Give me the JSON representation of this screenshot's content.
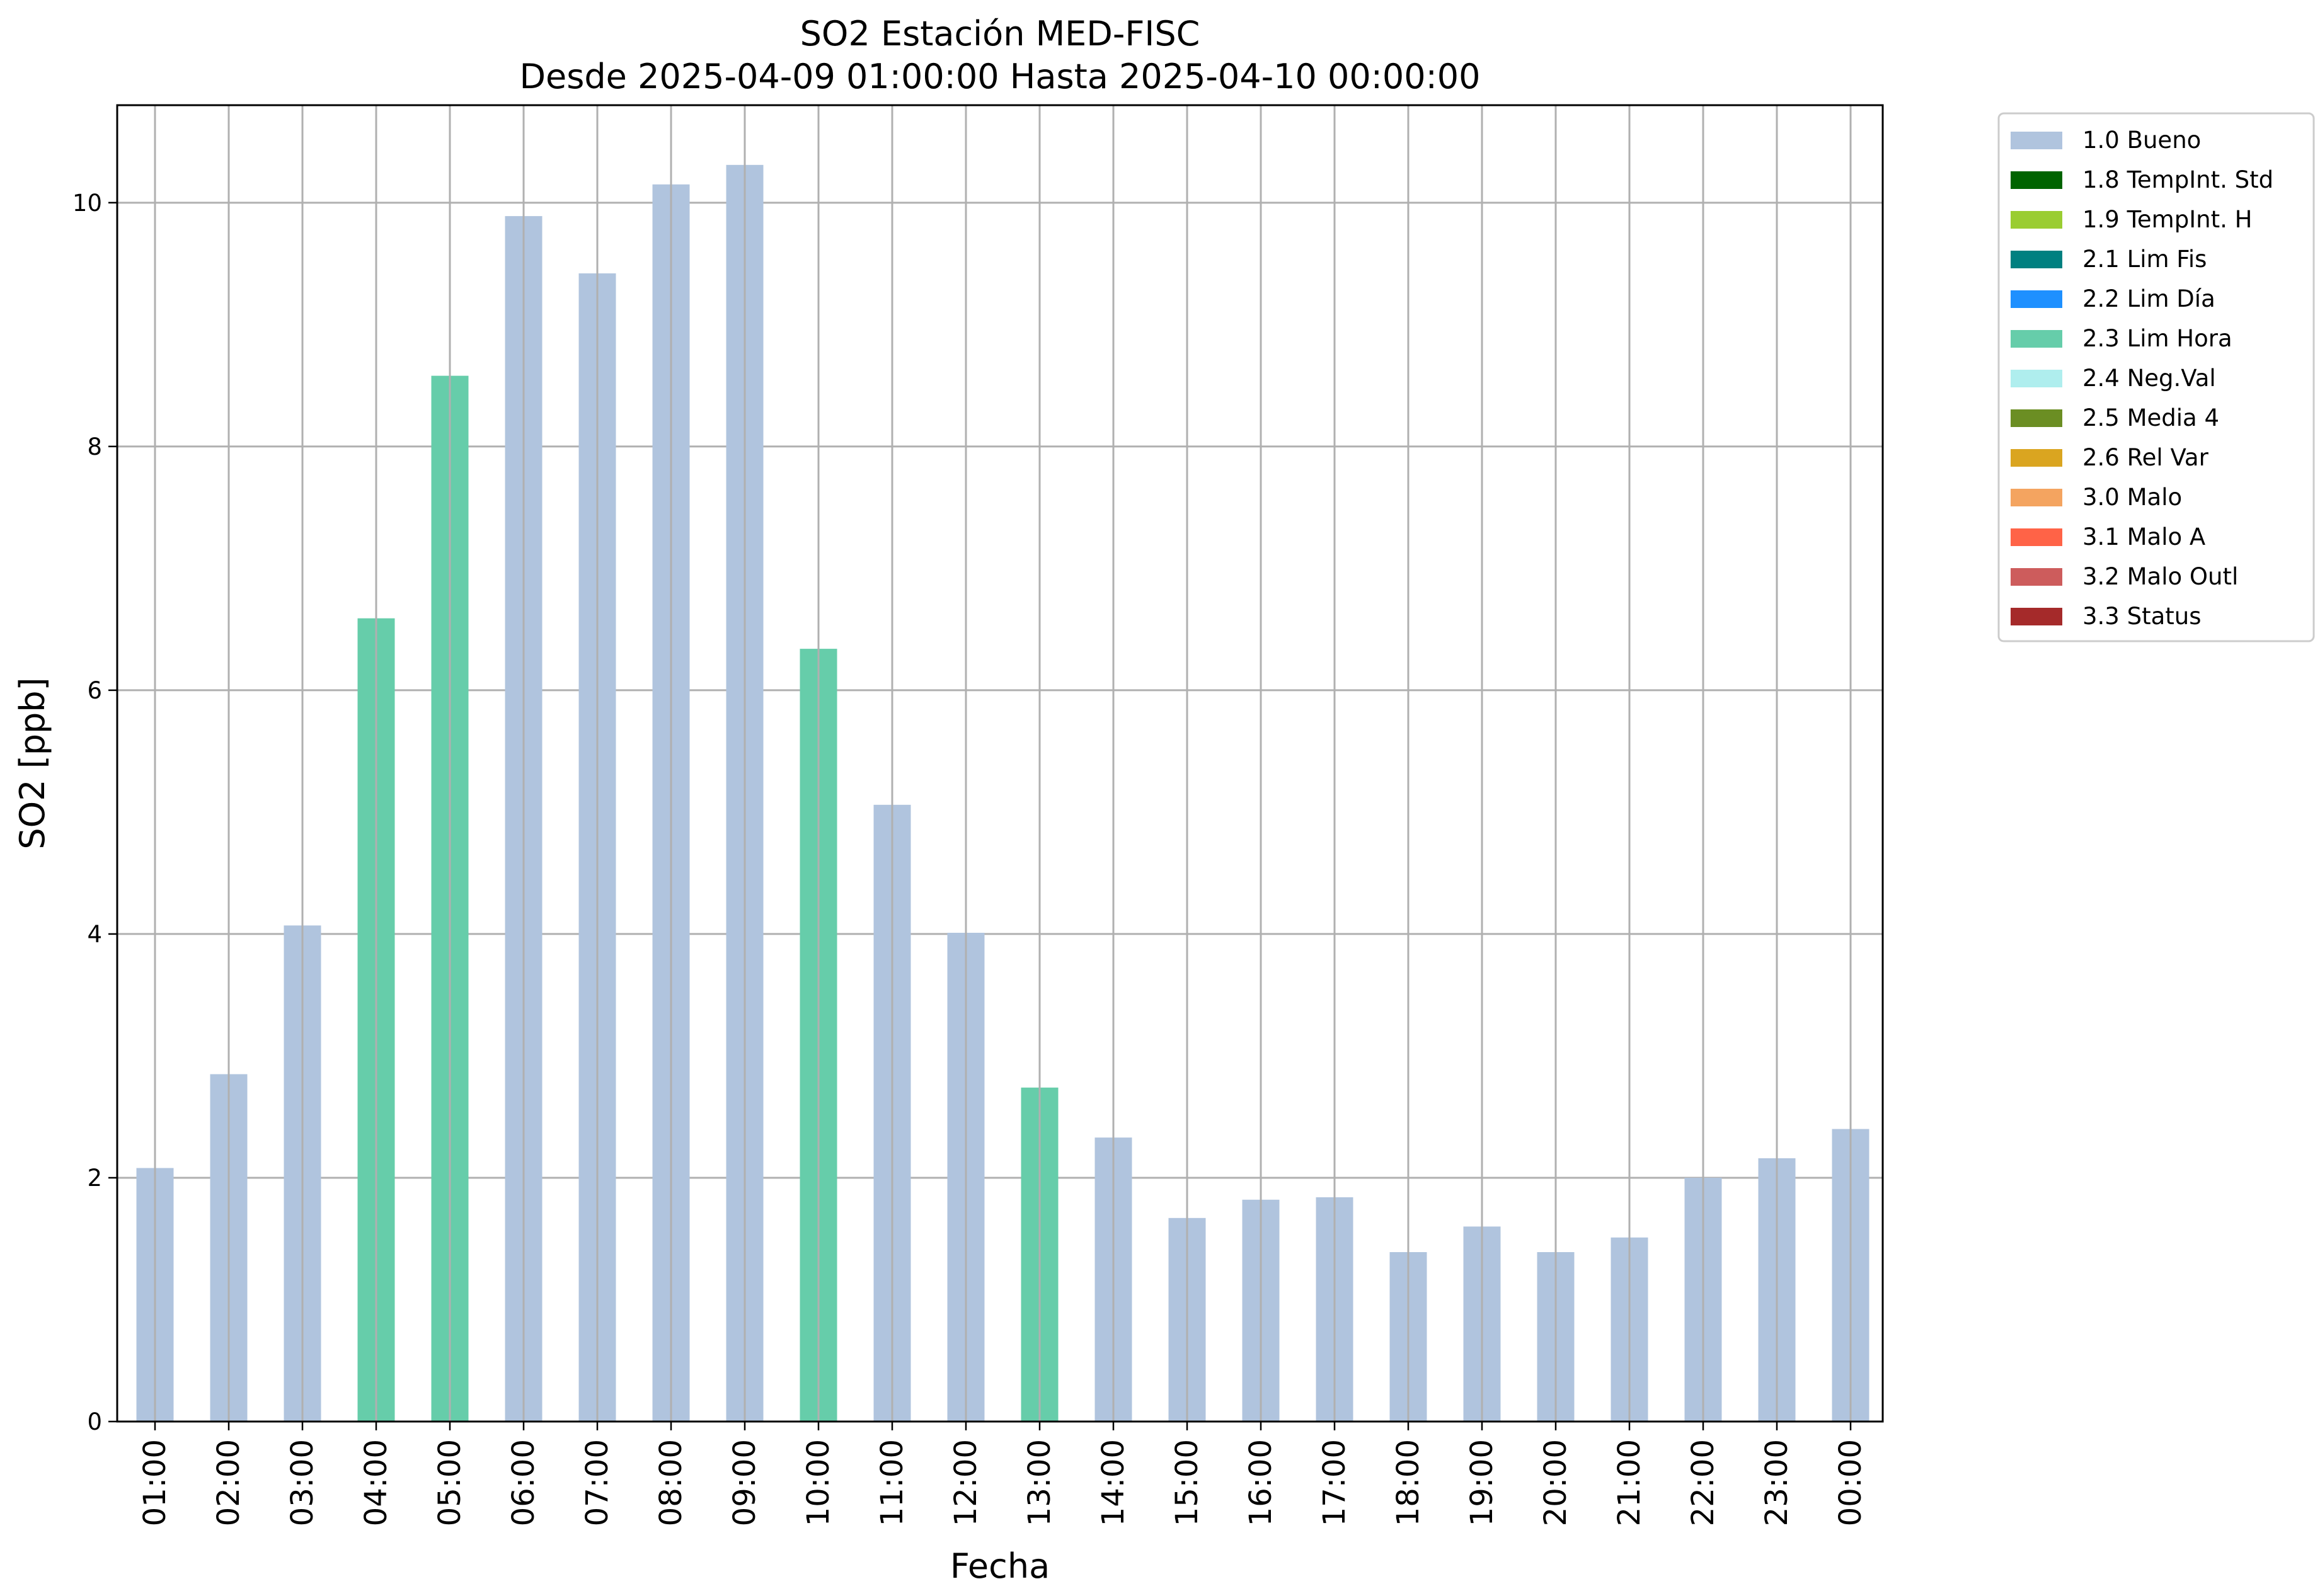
{
  "chart_data": {
    "type": "bar",
    "title": "SO2 Estación MED-FISC",
    "subtitle": "Desde 2025-04-09 01:00:00 Hasta 2025-04-10 00:00:00",
    "xlabel": "Fecha",
    "ylabel": "SO2 [ppb]",
    "ylim": [
      0,
      10.8
    ],
    "yticks": [
      0,
      2,
      4,
      6,
      8,
      10
    ],
    "grid": true,
    "legend_position": "outside-right-top",
    "categories": [
      "01:00",
      "02:00",
      "03:00",
      "04:00",
      "05:00",
      "06:00",
      "07:00",
      "08:00",
      "09:00",
      "10:00",
      "11:00",
      "12:00",
      "13:00",
      "14:00",
      "15:00",
      "16:00",
      "17:00",
      "18:00",
      "19:00",
      "20:00",
      "21:00",
      "22:00",
      "23:00",
      "00:00"
    ],
    "values": [
      2.08,
      2.85,
      4.07,
      6.59,
      8.58,
      9.89,
      9.42,
      10.15,
      10.31,
      6.34,
      5.06,
      4.01,
      2.74,
      2.33,
      1.67,
      1.82,
      1.84,
      1.39,
      1.6,
      1.39,
      1.51,
      2.0,
      2.16,
      2.4
    ],
    "flags": [
      "1.0 Bueno",
      "1.0 Bueno",
      "1.0 Bueno",
      "2.3 Lim Hora",
      "2.3 Lim Hora",
      "1.0 Bueno",
      "1.0 Bueno",
      "1.0 Bueno",
      "1.0 Bueno",
      "2.3 Lim Hora",
      "1.0 Bueno",
      "1.0 Bueno",
      "2.3 Lim Hora",
      "1.0 Bueno",
      "1.0 Bueno",
      "1.0 Bueno",
      "1.0 Bueno",
      "1.0 Bueno",
      "1.0 Bueno",
      "1.0 Bueno",
      "1.0 Bueno",
      "1.0 Bueno",
      "1.0 Bueno",
      "1.0 Bueno"
    ],
    "legend": [
      {
        "label": "1.0 Bueno",
        "color": "#b0c4de"
      },
      {
        "label": "1.8 TempInt. Std",
        "color": "#006400"
      },
      {
        "label": "1.9 TempInt. H",
        "color": "#9acd32"
      },
      {
        "label": "2.1 Lim Fis",
        "color": "#008080"
      },
      {
        "label": "2.2 Lim Día",
        "color": "#1e90ff"
      },
      {
        "label": "2.3 Lim Hora",
        "color": "#66cdaa"
      },
      {
        "label": "2.4 Neg.Val",
        "color": "#afeeee"
      },
      {
        "label": "2.5 Media 4",
        "color": "#6b8e23"
      },
      {
        "label": "2.6 Rel Var",
        "color": "#daa520"
      },
      {
        "label": "3.0 Malo",
        "color": "#f4a460"
      },
      {
        "label": "3.1 Malo A",
        "color": "#ff6347"
      },
      {
        "label": "3.2 Malo Outl",
        "color": "#cd5c5c"
      },
      {
        "label": "3.3 Status",
        "color": "#a52a2a"
      }
    ]
  }
}
